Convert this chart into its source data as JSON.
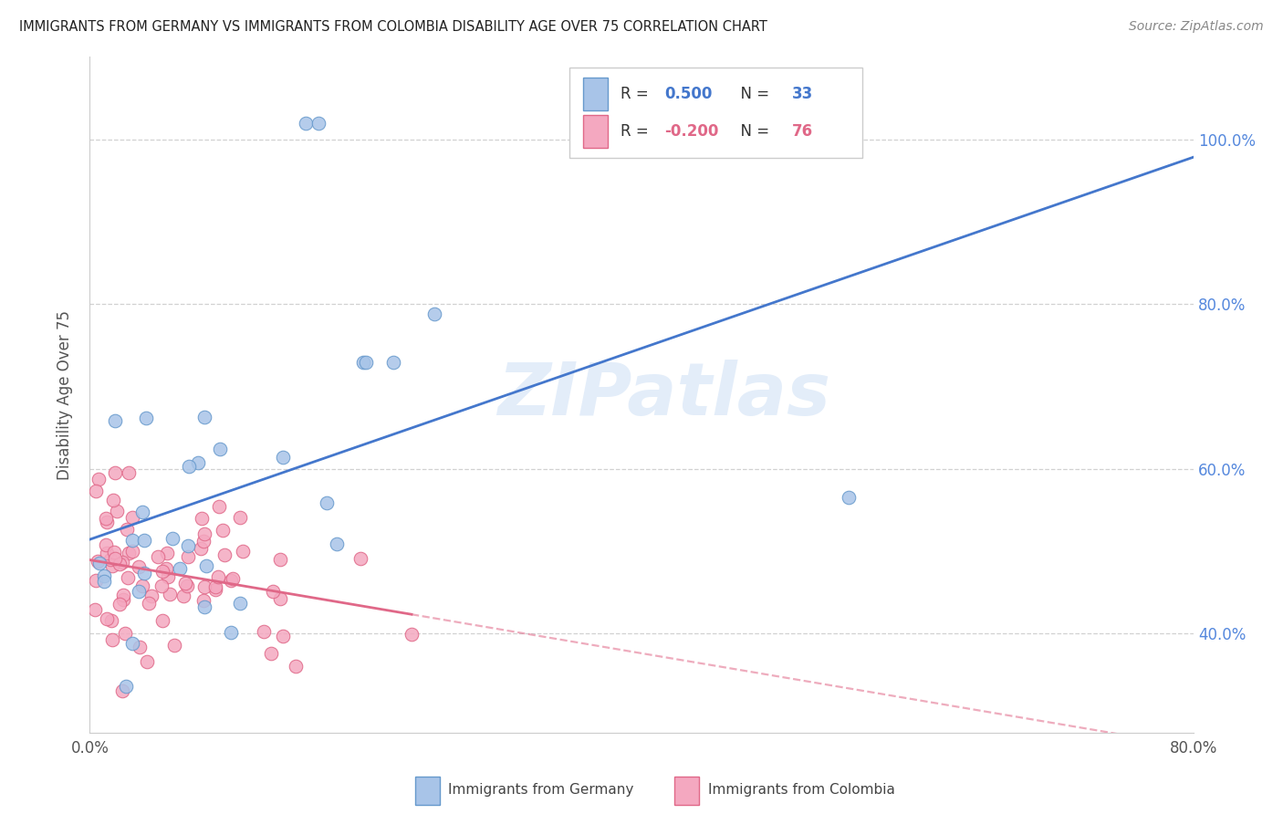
{
  "title": "IMMIGRANTS FROM GERMANY VS IMMIGRANTS FROM COLOMBIA DISABILITY AGE OVER 75 CORRELATION CHART",
  "source": "Source: ZipAtlas.com",
  "ylabel": "Disability Age Over 75",
  "xlim": [
    0.0,
    0.8
  ],
  "ylim": [
    0.28,
    1.1
  ],
  "xtick_vals": [
    0.0,
    0.1,
    0.2,
    0.3,
    0.4,
    0.5,
    0.6,
    0.7,
    0.8
  ],
  "xtick_labels": [
    "0.0%",
    "",
    "",
    "",
    "",
    "",
    "",
    "",
    "80.0%"
  ],
  "yticks_right": [
    0.4,
    0.6,
    0.8,
    1.0
  ],
  "ytick_labels_right": [
    "40.0%",
    "60.0%",
    "80.0%",
    "100.0%"
  ],
  "germany_color": "#a8c4e8",
  "colombia_color": "#f4a8c0",
  "germany_edge": "#6699cc",
  "colombia_edge": "#e06888",
  "germany_line_color": "#4477cc",
  "colombia_line_color": "#e06888",
  "watermark": "ZIPatlas",
  "legend_label_germany": "Immigrants from Germany",
  "legend_label_colombia": "Immigrants from Colombia",
  "germany_R": "0.500",
  "germany_N": "33",
  "colombia_R": "-0.200",
  "colombia_N": "76"
}
